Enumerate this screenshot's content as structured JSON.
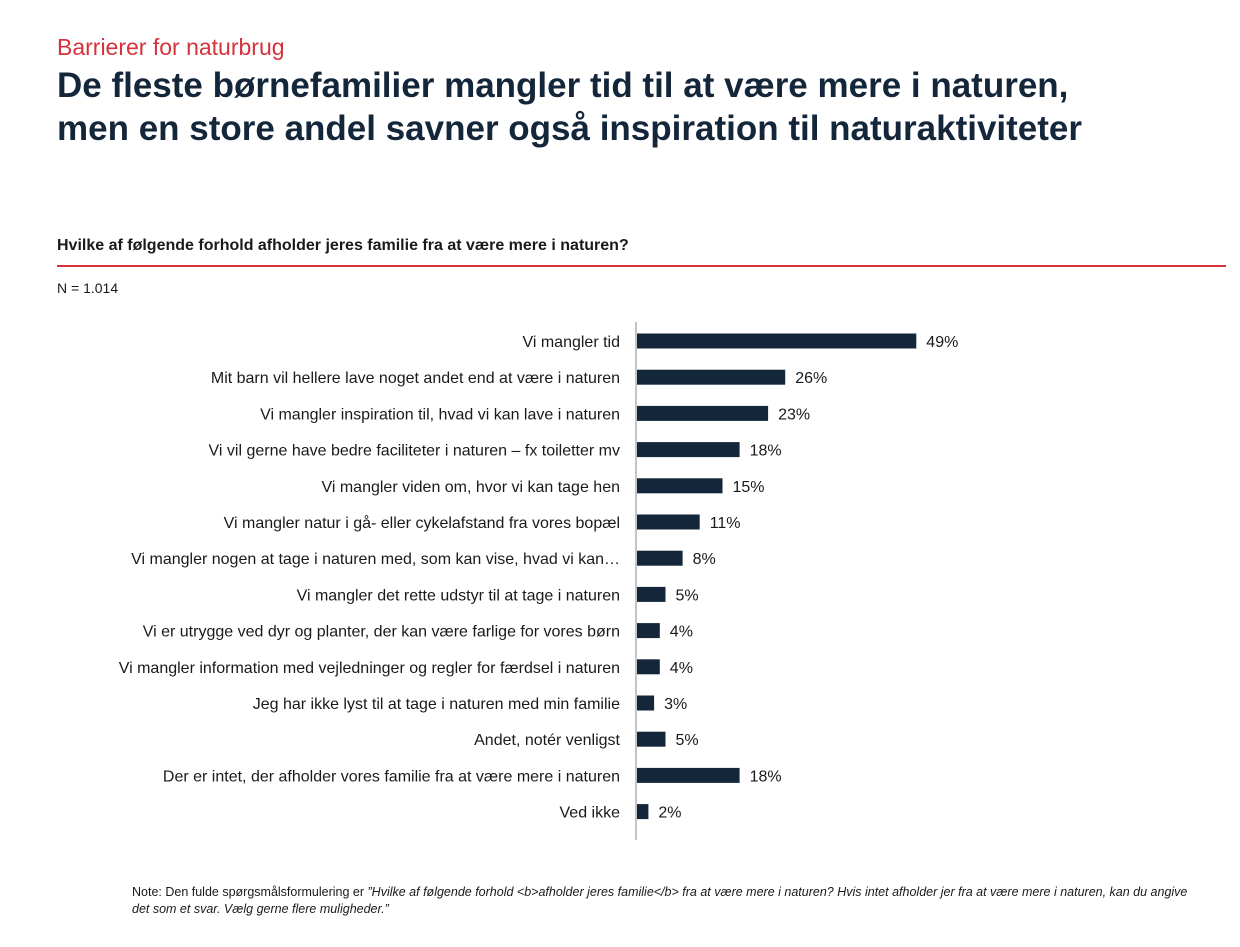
{
  "header": {
    "kicker": "Barrierer for naturbrug",
    "title_line1": "De fleste børnefamilier mangler tid til at være mere i naturen,",
    "title_line2": "men en store andel savner også inspiration til naturaktiviteter"
  },
  "question": "Hvilke af følgende forhold afholder jeres familie fra at være mere i naturen?",
  "sample_size": "N = 1.014",
  "note": {
    "prefix": "Note: Den fulde spørgsmålsformulering er ",
    "quote": "”Hvilke af følgende forhold <b>afholder jeres familie</b> fra at være mere i naturen? Hvis intet afholder jer fra at være mere i naturen, kan du angive det som et svar. Vælg gerne flere muligheder.”"
  },
  "colors": {
    "accent": "#d5323c",
    "bar": "#14263a",
    "axis": "#888888"
  },
  "chart_data": {
    "type": "bar",
    "orientation": "horizontal",
    "title": "Hvilke af følgende forhold afholder jeres familie fra at være mere i naturen?",
    "xlabel": "",
    "ylabel": "",
    "xlim": [
      0,
      100
    ],
    "grid": false,
    "legend": "none",
    "value_suffix": "%",
    "categories": [
      "Vi mangler tid",
      "Mit barn vil hellere lave noget andet end at være i naturen",
      "Vi mangler inspiration til, hvad vi kan lave i naturen",
      "Vi vil gerne have bedre faciliteter i naturen – fx toiletter mv",
      "Vi mangler viden om, hvor vi kan tage hen",
      "Vi mangler natur i gå- eller cykelafstand fra vores bopæl",
      "Vi mangler nogen at tage i naturen med, som kan vise, hvad vi kan…",
      "Vi mangler det rette udstyr til at tage i naturen",
      "Vi er utrygge ved dyr og planter, der kan være farlige for vores børn",
      "Vi mangler information med vejledninger og regler for færdsel i naturen",
      "Jeg har ikke lyst til at tage i naturen med min familie",
      "Andet, notér venligst",
      "Der er intet, der afholder vores familie fra at være mere i naturen",
      "Ved ikke"
    ],
    "values": [
      49,
      26,
      23,
      18,
      15,
      11,
      8,
      5,
      4,
      4,
      3,
      5,
      18,
      2
    ]
  }
}
